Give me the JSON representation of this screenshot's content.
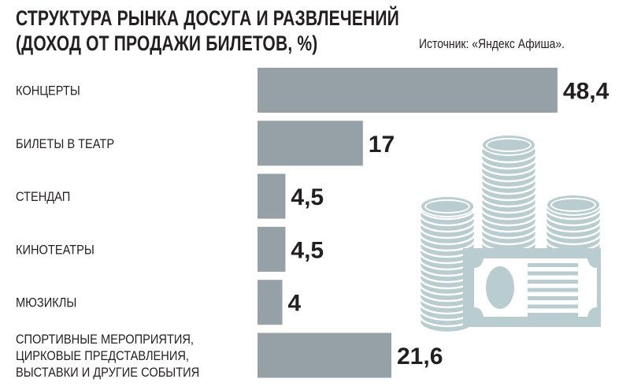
{
  "title_line1": "СТРУКТУРА РЫНКА ДОСУГА И РАЗВЛЕЧЕНИЙ",
  "title_line2": "(ДОХОД ОТ ПРОДАЖИ БИЛЕТОВ, %)",
  "source": "Источник: «Яндекс Афиша».",
  "colors": {
    "bar": "#95a1a6",
    "illustration": "#b9cccf",
    "text": "#231f20"
  },
  "illustration": "coins-and-banknote-icon",
  "chart_data": {
    "type": "bar",
    "orientation": "horizontal",
    "title": "СТРУКТУРА РЫНКА ДОСУГА И РАЗВЛЕЧЕНИЙ (ДОХОД ОТ ПРОДАЖИ БИЛЕТОВ, %)",
    "categories": [
      [
        "КОНЦЕРТЫ"
      ],
      [
        "БИЛЕТЫ В ТЕАТР"
      ],
      [
        "СТЕНДАП"
      ],
      [
        "КИНОТЕАТРЫ"
      ],
      [
        "МЮЗИКЛЫ"
      ],
      [
        "СПОРТИВНЫЕ МЕРОПРИЯТИЯ,",
        "ЦИРКОВЫЕ ПРЕДСТАВЛЕНИЯ,",
        "ВЫСТАВКИ И ДРУГИЕ СОБЫТИЯ"
      ]
    ],
    "values": [
      48.4,
      17,
      4.5,
      4.5,
      4,
      21.6
    ],
    "value_labels": [
      "48,4",
      "17",
      "4,5",
      "4,5",
      "4",
      "21,6"
    ],
    "grid": false,
    "legend": "none"
  }
}
